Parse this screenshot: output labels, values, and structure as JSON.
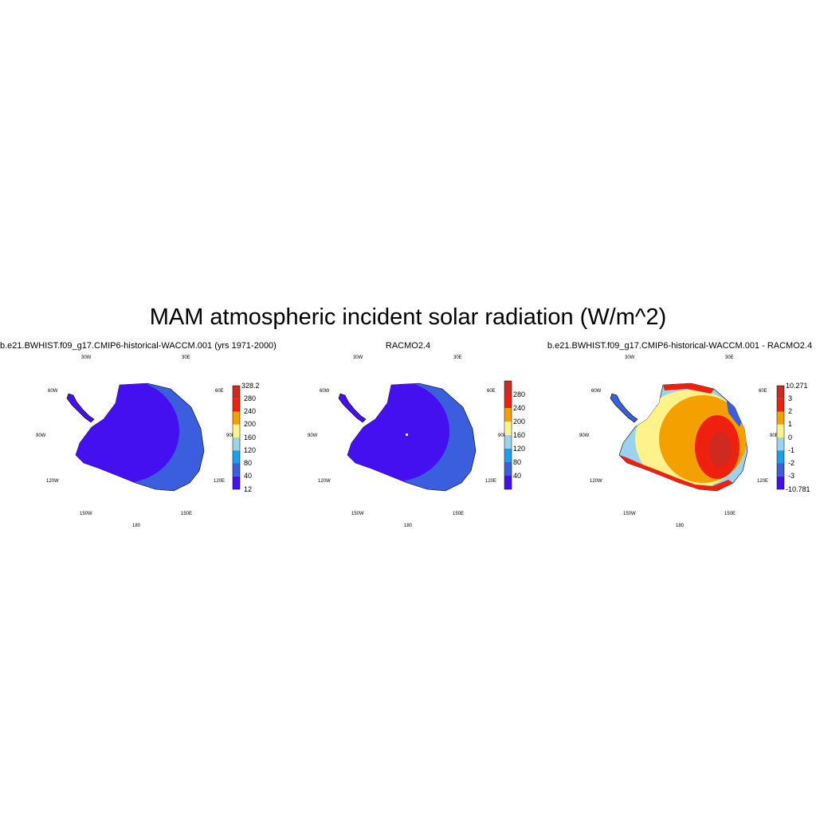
{
  "title": "MAM atmospheric incident solar radiation (W/m^2)",
  "longitude_labels": [
    "30W",
    "30E",
    "60W",
    "60E",
    "90W",
    "90E",
    "120W",
    "120E",
    "150W",
    "150E",
    "180"
  ],
  "panels": [
    {
      "title": "b.e21.BWHIST.f09_g17.CMIP6-historical-WACCM.001 (yrs 1971-2000)",
      "colorbar": {
        "colors": [
          "#4410f0",
          "#3a5edd",
          "#1ba0ec",
          "#9bd2f0",
          "#fef28a",
          "#f4a000",
          "#f02010",
          "#d02a20"
        ],
        "labels": [
          "12",
          "40",
          "80",
          "120",
          "160",
          "200",
          "240",
          "280",
          "328.2"
        ]
      }
    },
    {
      "title": "RACMO2.4",
      "colorbar": {
        "colors": [
          "#4410f0",
          "#3a5edd",
          "#1ba0ec",
          "#9bd2f0",
          "#fef28a",
          "#f4a000",
          "#f02010",
          "#d02a20"
        ],
        "labels": [
          "40",
          "80",
          "120",
          "160",
          "200",
          "240",
          "280"
        ]
      }
    },
    {
      "title": "b.e21.BWHIST.f09_g17.CMIP6-historical-WACCM.001 - RACMO2.4",
      "colorbar": {
        "colors": [
          "#4410f0",
          "#3a5edd",
          "#1ba0ec",
          "#9bd2f0",
          "#fef28a",
          "#f4a000",
          "#f02010",
          "#d02a20"
        ],
        "labels": [
          "-10.781",
          "-3",
          "-2",
          "-1",
          "0",
          "1",
          "2",
          "3",
          "10.271"
        ]
      }
    }
  ]
}
